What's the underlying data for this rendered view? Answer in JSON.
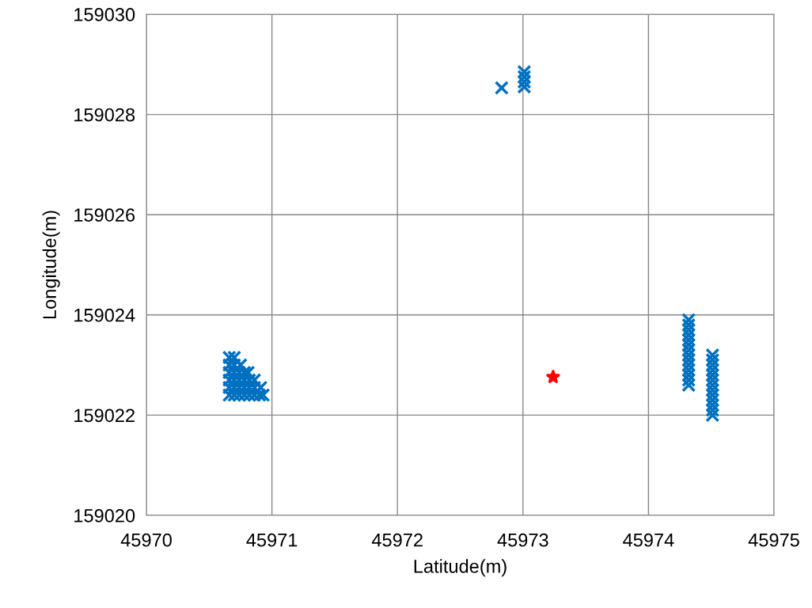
{
  "chart_data": {
    "type": "scatter",
    "xlabel": "Latitude(m)",
    "ylabel": "Longitude(m)",
    "xlim": [
      45970,
      45975
    ],
    "ylim": [
      159020,
      159030
    ],
    "xticks": [
      45970,
      45971,
      45972,
      45973,
      45974,
      45975
    ],
    "yticks": [
      159020,
      159022,
      159024,
      159026,
      159028,
      159030
    ],
    "grid": true,
    "series": [
      {
        "color": "#0070c0",
        "marker": "cross",
        "x": [
          45970.66,
          45970.7,
          45970.66,
          45970.7,
          45970.75,
          45970.66,
          45970.7,
          45970.74,
          45970.78,
          45970.81,
          45970.66,
          45970.7,
          45970.74,
          45970.78,
          45970.82,
          45970.86,
          45970.66,
          45970.7,
          45970.74,
          45970.78,
          45970.82,
          45970.86,
          45970.91,
          45970.66,
          45970.7,
          45970.74,
          45970.78,
          45970.82,
          45970.86,
          45970.9,
          45970.93,
          45972.83,
          45973.01,
          45973.01,
          45973.01,
          45973.01,
          45974.32,
          45974.32,
          45974.32,
          45974.32,
          45974.32,
          45974.32,
          45974.32,
          45974.32,
          45974.32,
          45974.32,
          45974.32,
          45974.32,
          45974.32,
          45974.32,
          45974.51,
          45974.51,
          45974.51,
          45974.51,
          45974.51,
          45974.51,
          45974.51,
          45974.51,
          45974.51,
          45974.51,
          45974.51,
          45974.51,
          45974.51
        ],
        "values": [
          159023.15,
          159023.15,
          159023.0,
          159023.0,
          159023.0,
          159022.85,
          159022.85,
          159022.85,
          159022.85,
          159022.85,
          159022.7,
          159022.7,
          159022.7,
          159022.7,
          159022.7,
          159022.7,
          159022.55,
          159022.55,
          159022.55,
          159022.55,
          159022.55,
          159022.55,
          159022.55,
          159022.4,
          159022.4,
          159022.4,
          159022.4,
          159022.4,
          159022.4,
          159022.4,
          159022.4,
          159028.53,
          159028.85,
          159028.75,
          159028.65,
          159028.55,
          159023.9,
          159023.8,
          159023.7,
          159023.6,
          159023.5,
          159023.4,
          159023.3,
          159023.2,
          159023.1,
          159023.0,
          159022.9,
          159022.8,
          159022.7,
          159022.6,
          159023.2,
          159023.1,
          159023.0,
          159022.9,
          159022.8,
          159022.7,
          159022.6,
          159022.5,
          159022.4,
          159022.3,
          159022.2,
          159022.1,
          159022.0
        ]
      },
      {
        "color": "#ff0000",
        "marker": "star",
        "x": [
          45973.24
        ],
        "values": [
          159022.76
        ]
      }
    ]
  }
}
